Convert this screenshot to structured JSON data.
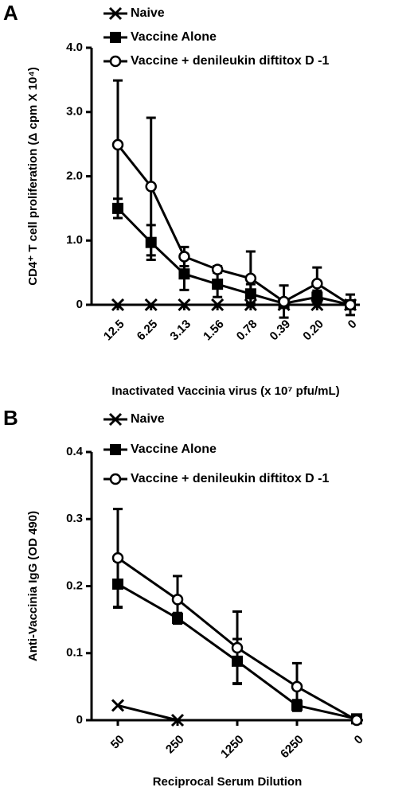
{
  "chart_data": [
    {
      "type": "line",
      "panel_label": "A",
      "ylabel": "CD4⁺ T cell proliferation (Δ cpm X 10⁴)",
      "xlabel": "Inactivated Vaccinia virus (x 10⁷ pfu/mL)",
      "categories": [
        "12.5",
        "6.25",
        "3.13",
        "1.56",
        "0.78",
        "0.39",
        "0.20",
        "0"
      ],
      "ylim": [
        0,
        4
      ],
      "yticks": [
        0,
        {
          "value": 1,
          "label": "1.0"
        },
        {
          "value": 2,
          "label": "2.0"
        },
        {
          "value": 3,
          "label": "3.0"
        },
        {
          "value": 4,
          "label": "4.0"
        }
      ],
      "series": [
        {
          "name": "Naive",
          "color": "#000000",
          "marker": "x",
          "values": [
            0,
            0,
            0,
            0,
            0,
            0,
            0,
            0
          ]
        },
        {
          "name": "Vaccine Alone",
          "color": "#000000",
          "marker": "square",
          "values": [
            1.5,
            0.97,
            0.48,
            0.32,
            0.17,
            0.02,
            0.12,
            0
          ],
          "errors": [
            0.15,
            0.27,
            0.25,
            0.2,
            0.15,
            0.05,
            0.1,
            0.05
          ]
        },
        {
          "name": "Vaccine + denileukin diftitox D -1",
          "color": "#000000",
          "marker": "circle",
          "values": [
            2.49,
            1.84,
            0.75,
            0.55,
            0.41,
            0.05,
            0.33,
            0
          ],
          "errors": [
            1.0,
            1.07,
            0.15,
            0.05,
            0.42,
            0.25,
            0.25,
            0.16
          ]
        }
      ]
    },
    {
      "type": "line",
      "panel_label": "B",
      "ylabel": "Anti-Vaccinia IgG (OD 490)",
      "xlabel": "Reciprocal Serum Dilution",
      "categories": [
        "50",
        "250",
        "1250",
        "6250",
        "0"
      ],
      "ylim": [
        0,
        0.4
      ],
      "yticks": [
        0,
        0.1,
        0.2,
        0.3,
        0.4
      ],
      "series": [
        {
          "name": "Naive",
          "color": "#000000",
          "marker": "x",
          "values": [
            0.022,
            0,
            null,
            null,
            null
          ]
        },
        {
          "name": "Vaccine Alone",
          "color": "#000000",
          "marker": "square",
          "values": [
            0.203,
            0.152,
            0.088,
            0.022,
            0.002
          ],
          "errors": [
            0.035,
            0.008,
            0.033,
            0.008,
            0.002
          ]
        },
        {
          "name": "Vaccine + denileukin diftitox D -1",
          "color": "#000000",
          "marker": "circle",
          "values": [
            0.242,
            0.18,
            0.108,
            0.05,
            0
          ],
          "errors": [
            0.073,
            0.035,
            0.054,
            0.035,
            0
          ]
        }
      ]
    }
  ]
}
